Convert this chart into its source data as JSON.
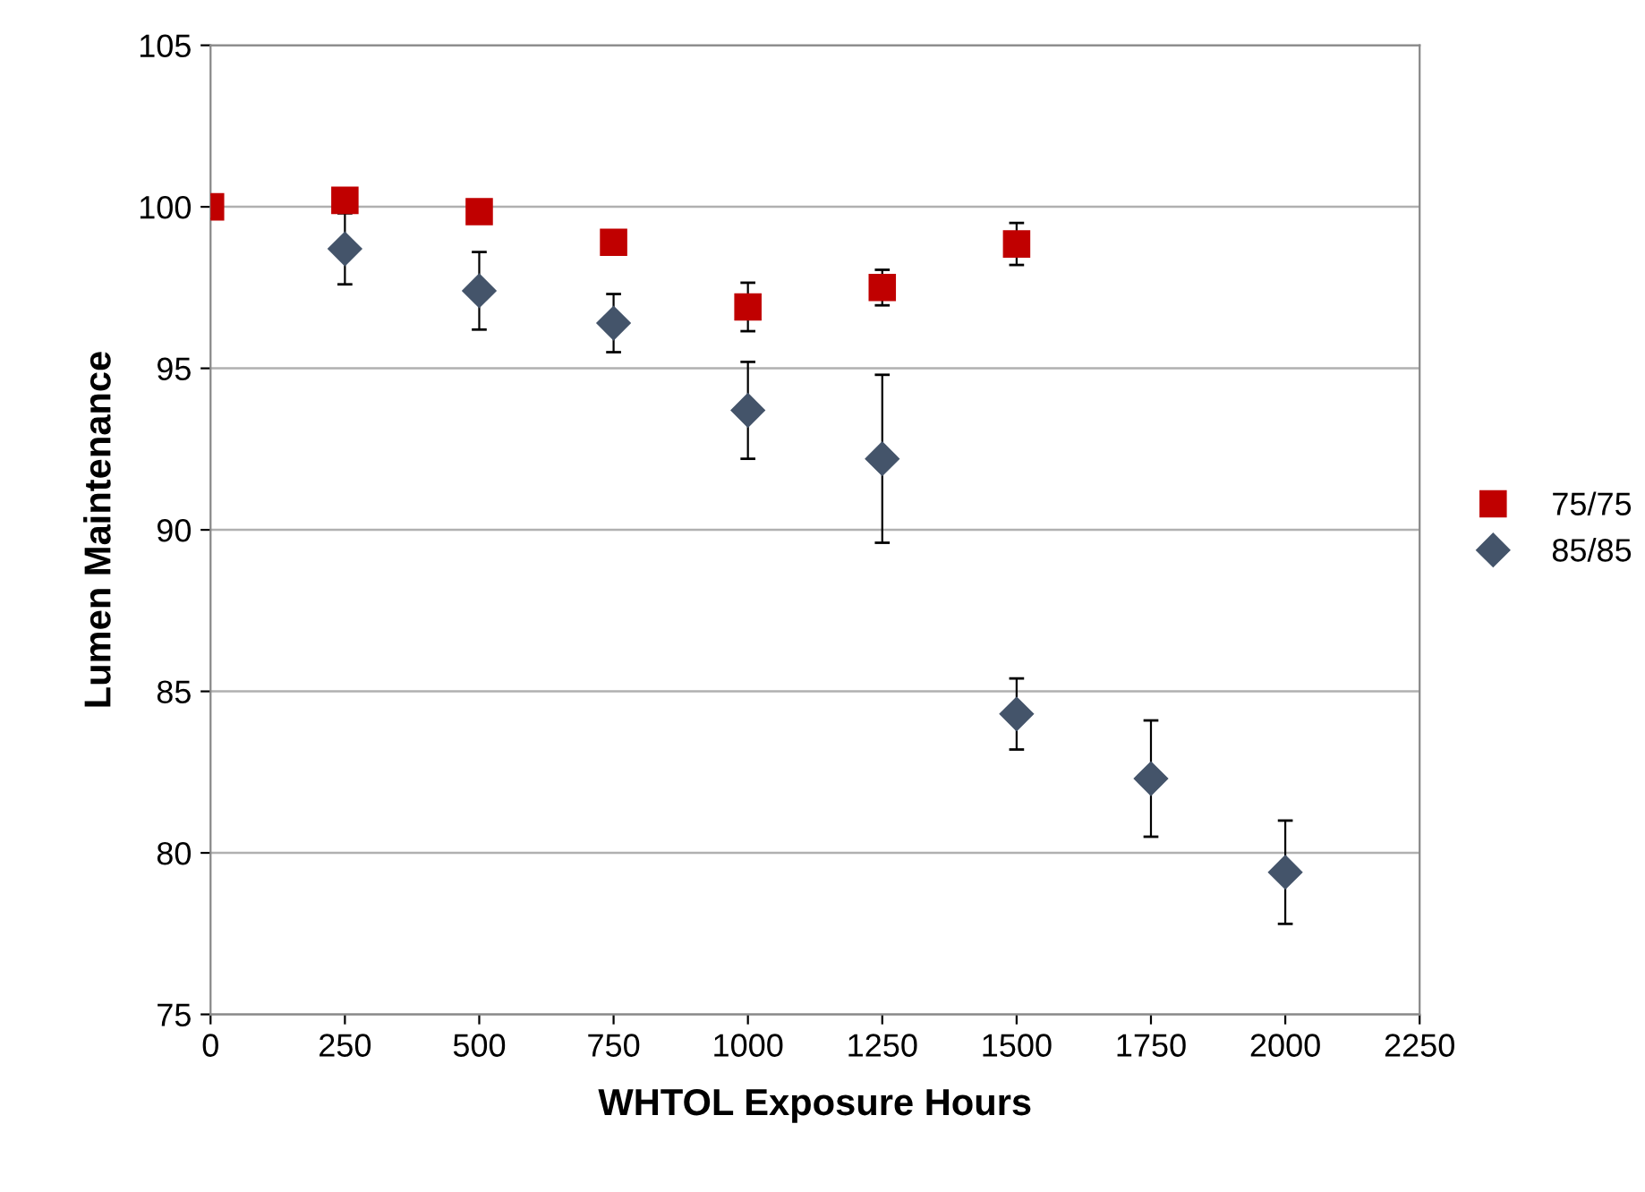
{
  "chart_data": {
    "type": "scatter",
    "xlabel": "WHTOL Exposure Hours",
    "ylabel": "Lumen Maintenance",
    "x": [
      0,
      250,
      500,
      750,
      1000,
      1250,
      1500,
      1750,
      2000
    ],
    "series": [
      {
        "name": "75/75",
        "color": "#c00000",
        "marker": "square",
        "values": [
          100,
          100.2,
          99.85,
          98.9,
          96.9,
          97.5,
          98.85,
          null,
          null
        ],
        "errors": [
          null,
          null,
          null,
          null,
          0.75,
          0.55,
          0.65,
          null,
          null
        ]
      },
      {
        "name": "85/85",
        "color": "#44546a",
        "marker": "diamond",
        "values": [
          null,
          98.7,
          97.4,
          96.4,
          93.7,
          92.2,
          84.3,
          82.3,
          79.4
        ],
        "errors": [
          null,
          1.1,
          1.2,
          0.9,
          1.5,
          2.6,
          1.1,
          1.8,
          1.6
        ]
      }
    ],
    "xlim": [
      0,
      2250
    ],
    "xticks": [
      0,
      250,
      500,
      750,
      1000,
      1250,
      1500,
      1750,
      2000,
      2250
    ],
    "ylim": [
      75,
      105
    ],
    "yticks": [
      75,
      80,
      85,
      90,
      95,
      100,
      105
    ],
    "grid": "y",
    "legend": "right"
  }
}
